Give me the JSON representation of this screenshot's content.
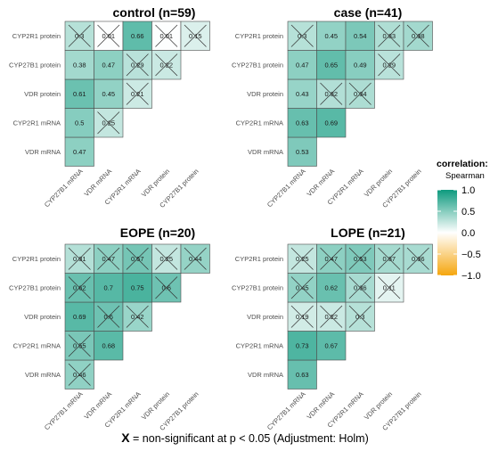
{
  "chart_data": [
    {
      "type": "heatmap",
      "title": "control (n=59)",
      "variables": [
        "CYP27B1 mRNA",
        "VDR mRNA",
        "CYP2R1 mRNA",
        "VDR protein",
        "CYP27B1 protein",
        "CYP2R1 protein"
      ],
      "cells": [
        {
          "row": "VDR mRNA",
          "col": "CYP27B1 mRNA",
          "label": "0.47",
          "value": 0.47,
          "significant": true
        },
        {
          "row": "CYP2R1 mRNA",
          "col": "CYP27B1 mRNA",
          "label": "0.5",
          "value": 0.5,
          "significant": true
        },
        {
          "row": "CYP2R1 mRNA",
          "col": "VDR mRNA",
          "label": "0.25",
          "value": 0.25,
          "significant": false
        },
        {
          "row": "VDR protein",
          "col": "CYP27B1 mRNA",
          "label": "0.61",
          "value": 0.61,
          "significant": true
        },
        {
          "row": "VDR protein",
          "col": "VDR mRNA",
          "label": "0.45",
          "value": 0.45,
          "significant": true
        },
        {
          "row": "VDR protein",
          "col": "CYP2R1 mRNA",
          "label": "0.21",
          "value": 0.21,
          "significant": false
        },
        {
          "row": "CYP27B1 protein",
          "col": "CYP27B1 mRNA",
          "label": "0.38",
          "value": 0.38,
          "significant": true
        },
        {
          "row": "CYP27B1 protein",
          "col": "VDR mRNA",
          "label": "0.47",
          "value": 0.47,
          "significant": true
        },
        {
          "row": "CYP27B1 protein",
          "col": "CYP2R1 mRNA",
          "label": "0.29",
          "value": 0.29,
          "significant": false
        },
        {
          "row": "CYP27B1 protein",
          "col": "VDR protein",
          "label": "0.22",
          "value": 0.22,
          "significant": false
        },
        {
          "row": "CYP2R1 protein",
          "col": "CYP27B1 mRNA",
          "label": "0.3",
          "value": 0.3,
          "significant": false
        },
        {
          "row": "CYP2R1 protein",
          "col": "VDR mRNA",
          "label": "0.01",
          "value": 0.01,
          "significant": false
        },
        {
          "row": "CYP2R1 protein",
          "col": "CYP2R1 mRNA",
          "label": "0.66",
          "value": 0.66,
          "significant": true
        },
        {
          "row": "CYP2R1 protein",
          "col": "VDR protein",
          "label": "0.01",
          "value": 0.01,
          "significant": false
        },
        {
          "row": "CYP2R1 protein",
          "col": "CYP27B1 protein",
          "label": "0.15",
          "value": 0.15,
          "significant": false
        }
      ]
    },
    {
      "type": "heatmap",
      "title": "case (n=41)",
      "variables": [
        "CYP27B1 mRNA",
        "VDR mRNA",
        "CYP2R1 mRNA",
        "VDR protein",
        "CYP27B1 protein",
        "CYP2R1 protein"
      ],
      "cells": [
        {
          "row": "VDR mRNA",
          "col": "CYP27B1 mRNA",
          "label": "0.53",
          "value": 0.53,
          "significant": true
        },
        {
          "row": "CYP2R1 mRNA",
          "col": "CYP27B1 mRNA",
          "label": "0.63",
          "value": 0.63,
          "significant": true
        },
        {
          "row": "CYP2R1 mRNA",
          "col": "VDR mRNA",
          "label": "0.69",
          "value": 0.69,
          "significant": true
        },
        {
          "row": "VDR protein",
          "col": "CYP27B1 mRNA",
          "label": "0.43",
          "value": 0.43,
          "significant": true
        },
        {
          "row": "VDR protein",
          "col": "VDR mRNA",
          "label": "0.32",
          "value": 0.32,
          "significant": false
        },
        {
          "row": "VDR protein",
          "col": "CYP2R1 mRNA",
          "label": "0.34",
          "value": 0.34,
          "significant": false
        },
        {
          "row": "CYP27B1 protein",
          "col": "CYP27B1 mRNA",
          "label": "0.47",
          "value": 0.47,
          "significant": true
        },
        {
          "row": "CYP27B1 protein",
          "col": "VDR mRNA",
          "label": "0.65",
          "value": 0.65,
          "significant": true
        },
        {
          "row": "CYP27B1 protein",
          "col": "CYP2R1 mRNA",
          "label": "0.49",
          "value": 0.49,
          "significant": true
        },
        {
          "row": "CYP27B1 protein",
          "col": "VDR protein",
          "label": "0.29",
          "value": 0.29,
          "significant": false
        },
        {
          "row": "CYP2R1 protein",
          "col": "CYP27B1 mRNA",
          "label": "0.3",
          "value": 0.3,
          "significant": false
        },
        {
          "row": "CYP2R1 protein",
          "col": "VDR mRNA",
          "label": "0.45",
          "value": 0.45,
          "significant": true
        },
        {
          "row": "CYP2R1 protein",
          "col": "CYP2R1 mRNA",
          "label": "0.54",
          "value": 0.54,
          "significant": true
        },
        {
          "row": "CYP2R1 protein",
          "col": "VDR protein",
          "label": "0.33",
          "value": 0.33,
          "significant": false
        },
        {
          "row": "CYP2R1 protein",
          "col": "CYP27B1 protein",
          "label": "0.38",
          "value": 0.38,
          "significant": false
        }
      ]
    },
    {
      "type": "heatmap",
      "title": "EOPE (n=20)",
      "variables": [
        "CYP27B1 mRNA",
        "VDR mRNA",
        "CYP2R1 mRNA",
        "VDR protein",
        "CYP27B1 protein",
        "CYP2R1 protein"
      ],
      "cells": [
        {
          "row": "VDR mRNA",
          "col": "CYP27B1 mRNA",
          "label": "0.46",
          "value": 0.46,
          "significant": false
        },
        {
          "row": "CYP2R1 mRNA",
          "col": "CYP27B1 mRNA",
          "label": "0.55",
          "value": 0.55,
          "significant": false
        },
        {
          "row": "CYP2R1 mRNA",
          "col": "VDR mRNA",
          "label": "0.68",
          "value": 0.68,
          "significant": true
        },
        {
          "row": "VDR protein",
          "col": "CYP27B1 mRNA",
          "label": "0.69",
          "value": 0.69,
          "significant": true
        },
        {
          "row": "VDR protein",
          "col": "VDR mRNA",
          "label": "0.6",
          "value": 0.6,
          "significant": false
        },
        {
          "row": "VDR protein",
          "col": "CYP2R1 mRNA",
          "label": "0.42",
          "value": 0.42,
          "significant": false
        },
        {
          "row": "CYP27B1 protein",
          "col": "CYP27B1 mRNA",
          "label": "0.62",
          "value": 0.62,
          "significant": false
        },
        {
          "row": "CYP27B1 protein",
          "col": "VDR mRNA",
          "label": "0.7",
          "value": 0.7,
          "significant": true
        },
        {
          "row": "CYP27B1 protein",
          "col": "CYP2R1 mRNA",
          "label": "0.75",
          "value": 0.75,
          "significant": true
        },
        {
          "row": "CYP27B1 protein",
          "col": "VDR protein",
          "label": "0.6",
          "value": 0.6,
          "significant": false
        },
        {
          "row": "CYP2R1 protein",
          "col": "CYP27B1 mRNA",
          "label": "0.31",
          "value": 0.31,
          "significant": false
        },
        {
          "row": "CYP2R1 protein",
          "col": "VDR mRNA",
          "label": "0.47",
          "value": 0.47,
          "significant": false
        },
        {
          "row": "CYP2R1 protein",
          "col": "CYP2R1 mRNA",
          "label": "0.57",
          "value": 0.57,
          "significant": false
        },
        {
          "row": "CYP2R1 protein",
          "col": "VDR protein",
          "label": "0.25",
          "value": 0.25,
          "significant": false
        },
        {
          "row": "CYP2R1 protein",
          "col": "CYP27B1 protein",
          "label": "0.44",
          "value": 0.44,
          "significant": false
        }
      ]
    },
    {
      "type": "heatmap",
      "title": "LOPE (n=21)",
      "variables": [
        "CYP27B1 mRNA",
        "VDR mRNA",
        "CYP2R1 mRNA",
        "VDR protein",
        "CYP27B1 protein",
        "CYP2R1 protein"
      ],
      "cells": [
        {
          "row": "VDR mRNA",
          "col": "CYP27B1 mRNA",
          "label": "0.63",
          "value": 0.63,
          "significant": true
        },
        {
          "row": "CYP2R1 mRNA",
          "col": "CYP27B1 mRNA",
          "label": "0.73",
          "value": 0.73,
          "significant": true
        },
        {
          "row": "CYP2R1 mRNA",
          "col": "VDR mRNA",
          "label": "0.67",
          "value": 0.67,
          "significant": true
        },
        {
          "row": "VDR protein",
          "col": "CYP27B1 mRNA",
          "label": "0.19",
          "value": 0.19,
          "significant": false
        },
        {
          "row": "VDR protein",
          "col": "VDR mRNA",
          "label": "0.22",
          "value": 0.22,
          "significant": false
        },
        {
          "row": "VDR protein",
          "col": "CYP2R1 mRNA",
          "label": "0.3",
          "value": 0.3,
          "significant": false
        },
        {
          "row": "CYP27B1 protein",
          "col": "CYP27B1 mRNA",
          "label": "0.45",
          "value": 0.45,
          "significant": false
        },
        {
          "row": "CYP27B1 protein",
          "col": "VDR mRNA",
          "label": "0.62",
          "value": 0.62,
          "significant": true
        },
        {
          "row": "CYP27B1 protein",
          "col": "CYP2R1 mRNA",
          "label": "0.36",
          "value": 0.36,
          "significant": false
        },
        {
          "row": "CYP27B1 protein",
          "col": "VDR protein",
          "label": "0.11",
          "value": 0.11,
          "significant": false
        },
        {
          "row": "CYP2R1 protein",
          "col": "CYP27B1 mRNA",
          "label": "0.25",
          "value": 0.25,
          "significant": false
        },
        {
          "row": "CYP2R1 protein",
          "col": "VDR mRNA",
          "label": "0.47",
          "value": 0.47,
          "significant": false
        },
        {
          "row": "CYP2R1 protein",
          "col": "CYP2R1 mRNA",
          "label": "0.53",
          "value": 0.53,
          "significant": false
        },
        {
          "row": "CYP2R1 protein",
          "col": "VDR protein",
          "label": "0.37",
          "value": 0.37,
          "significant": false
        },
        {
          "row": "CYP2R1 protein",
          "col": "CYP27B1 protein",
          "label": "0.36",
          "value": 0.36,
          "significant": false
        }
      ]
    }
  ],
  "legend": {
    "title": "correlation:",
    "subtitle": "Spearman",
    "ticks": [
      {
        "value": 1.0,
        "label": "1.0"
      },
      {
        "value": 0.5,
        "label": "0.5"
      },
      {
        "value": 0.0,
        "label": "0.0"
      },
      {
        "value": -0.5,
        "label": "−0.5"
      },
      {
        "value": -1.0,
        "label": "−1.0"
      }
    ],
    "colors": {
      "high": "#0d9a7e",
      "mid": "#ffffff",
      "low": "#f5a60f"
    }
  },
  "caption": {
    "marker": "X",
    "text": " = non-significant at p < 0.05 (Adjustment: Holm)"
  }
}
